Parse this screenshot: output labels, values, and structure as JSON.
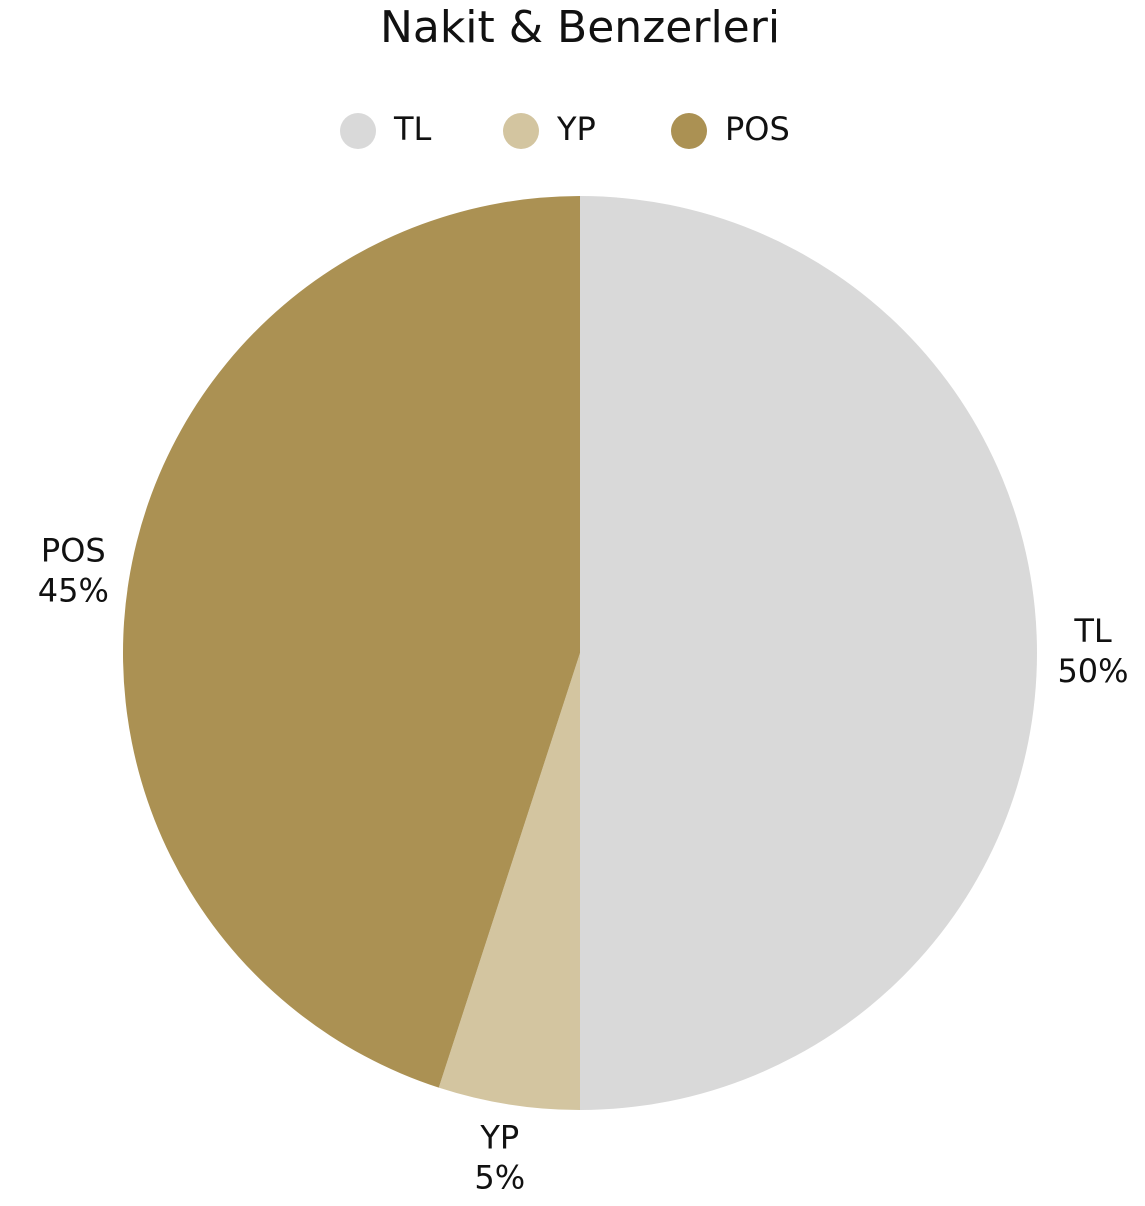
{
  "chart_data": {
    "type": "pie",
    "title": "Nakit & Benzerleri",
    "categories": [
      "TL",
      "YP",
      "POS"
    ],
    "values": [
      50,
      5,
      45
    ],
    "value_labels": [
      "50%",
      "5%",
      "45%"
    ],
    "colors": [
      "#d9d9d9",
      "#d3c5a0",
      "#ab9153"
    ],
    "legend": "top"
  }
}
